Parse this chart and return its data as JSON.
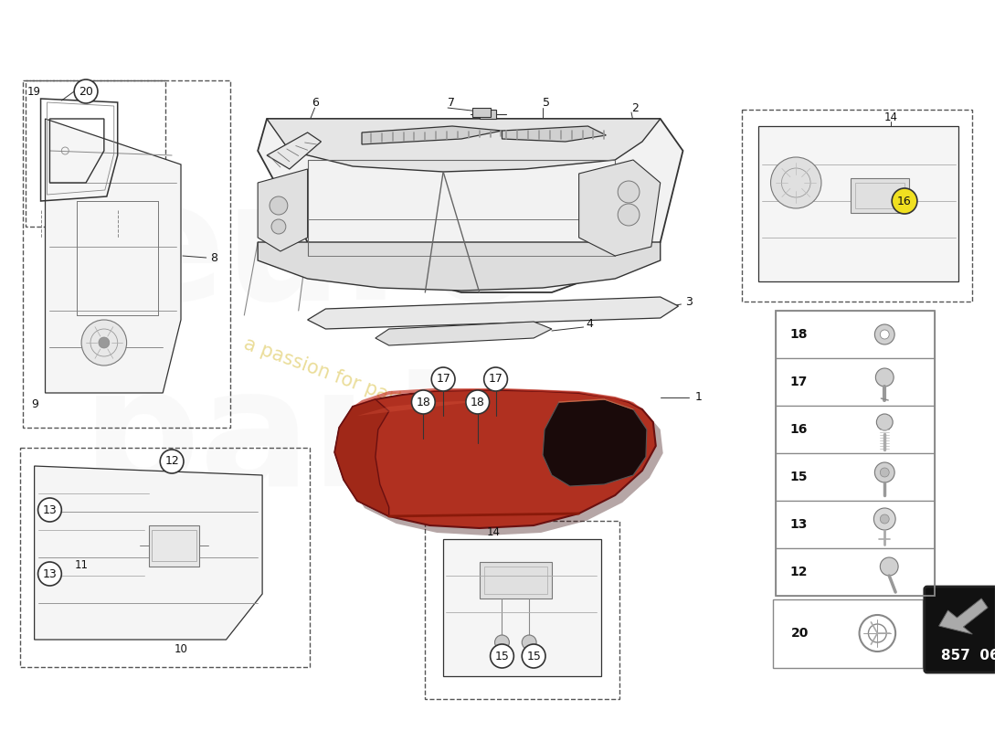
{
  "bg": "#ffffff",
  "lc": "#333333",
  "dash_color": "#555555",
  "red_fill": "#b03020",
  "red_mid": "#c84030",
  "red_dark": "#6a1010",
  "red_shadow": "#3a0808",
  "label_color": "#111111",
  "yellow_circle": "#f0e020",
  "legend_border": "#888888",
  "circle_bg": "#ffffff",
  "watermark_color": "#ccaa00",
  "part_number_bg": "#111111",
  "part_number_text": "#ffffff"
}
